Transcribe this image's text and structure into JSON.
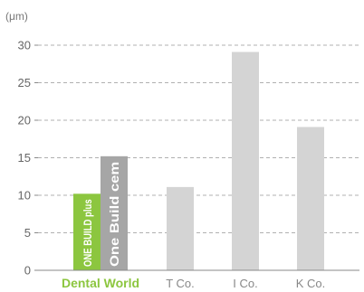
{
  "chart_data": {
    "type": "bar",
    "unit_label": "(μm)",
    "y_ticks": [
      "0",
      "5",
      "10",
      "15",
      "20",
      "25",
      "30"
    ],
    "ylim": [
      0,
      30
    ],
    "grid": true,
    "groups": [
      {
        "category": "Dental World",
        "highlight": true,
        "bars": [
          {
            "name": "ONE BUILD plus",
            "value": 10.2,
            "color": "#8cc63f"
          },
          {
            "name": "One Build cem",
            "value": 15.2,
            "color": "#a6a6a6"
          }
        ]
      },
      {
        "category": "T Co.",
        "bars": [
          {
            "value": 11.1,
            "color": "#d4d4d4"
          }
        ]
      },
      {
        "category": "I Co.",
        "bars": [
          {
            "value": 29.1,
            "color": "#d4d4d4"
          }
        ]
      },
      {
        "category": "K Co.",
        "bars": [
          {
            "value": 19.1,
            "color": "#d4d4d4"
          }
        ]
      }
    ]
  }
}
